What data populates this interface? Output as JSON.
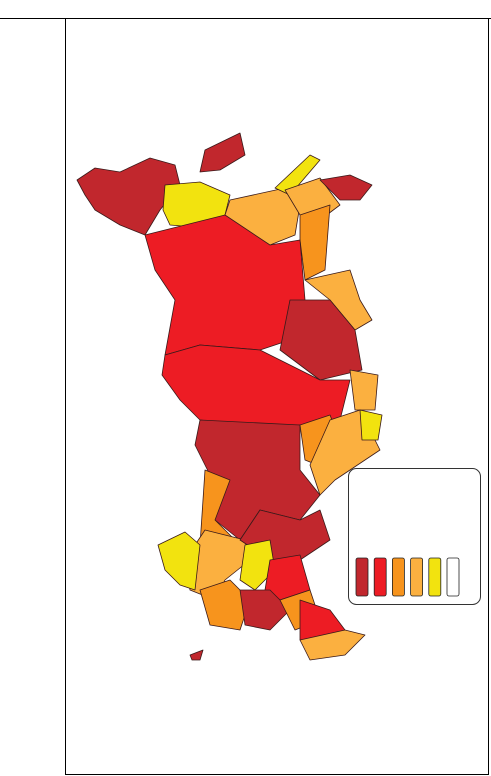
{
  "legend": {
    "colors": [
      "#c1272d",
      "#ed1c24",
      "#f7941d",
      "#fbb040",
      "#f2e30f",
      "#ffffff"
    ]
  }
}
